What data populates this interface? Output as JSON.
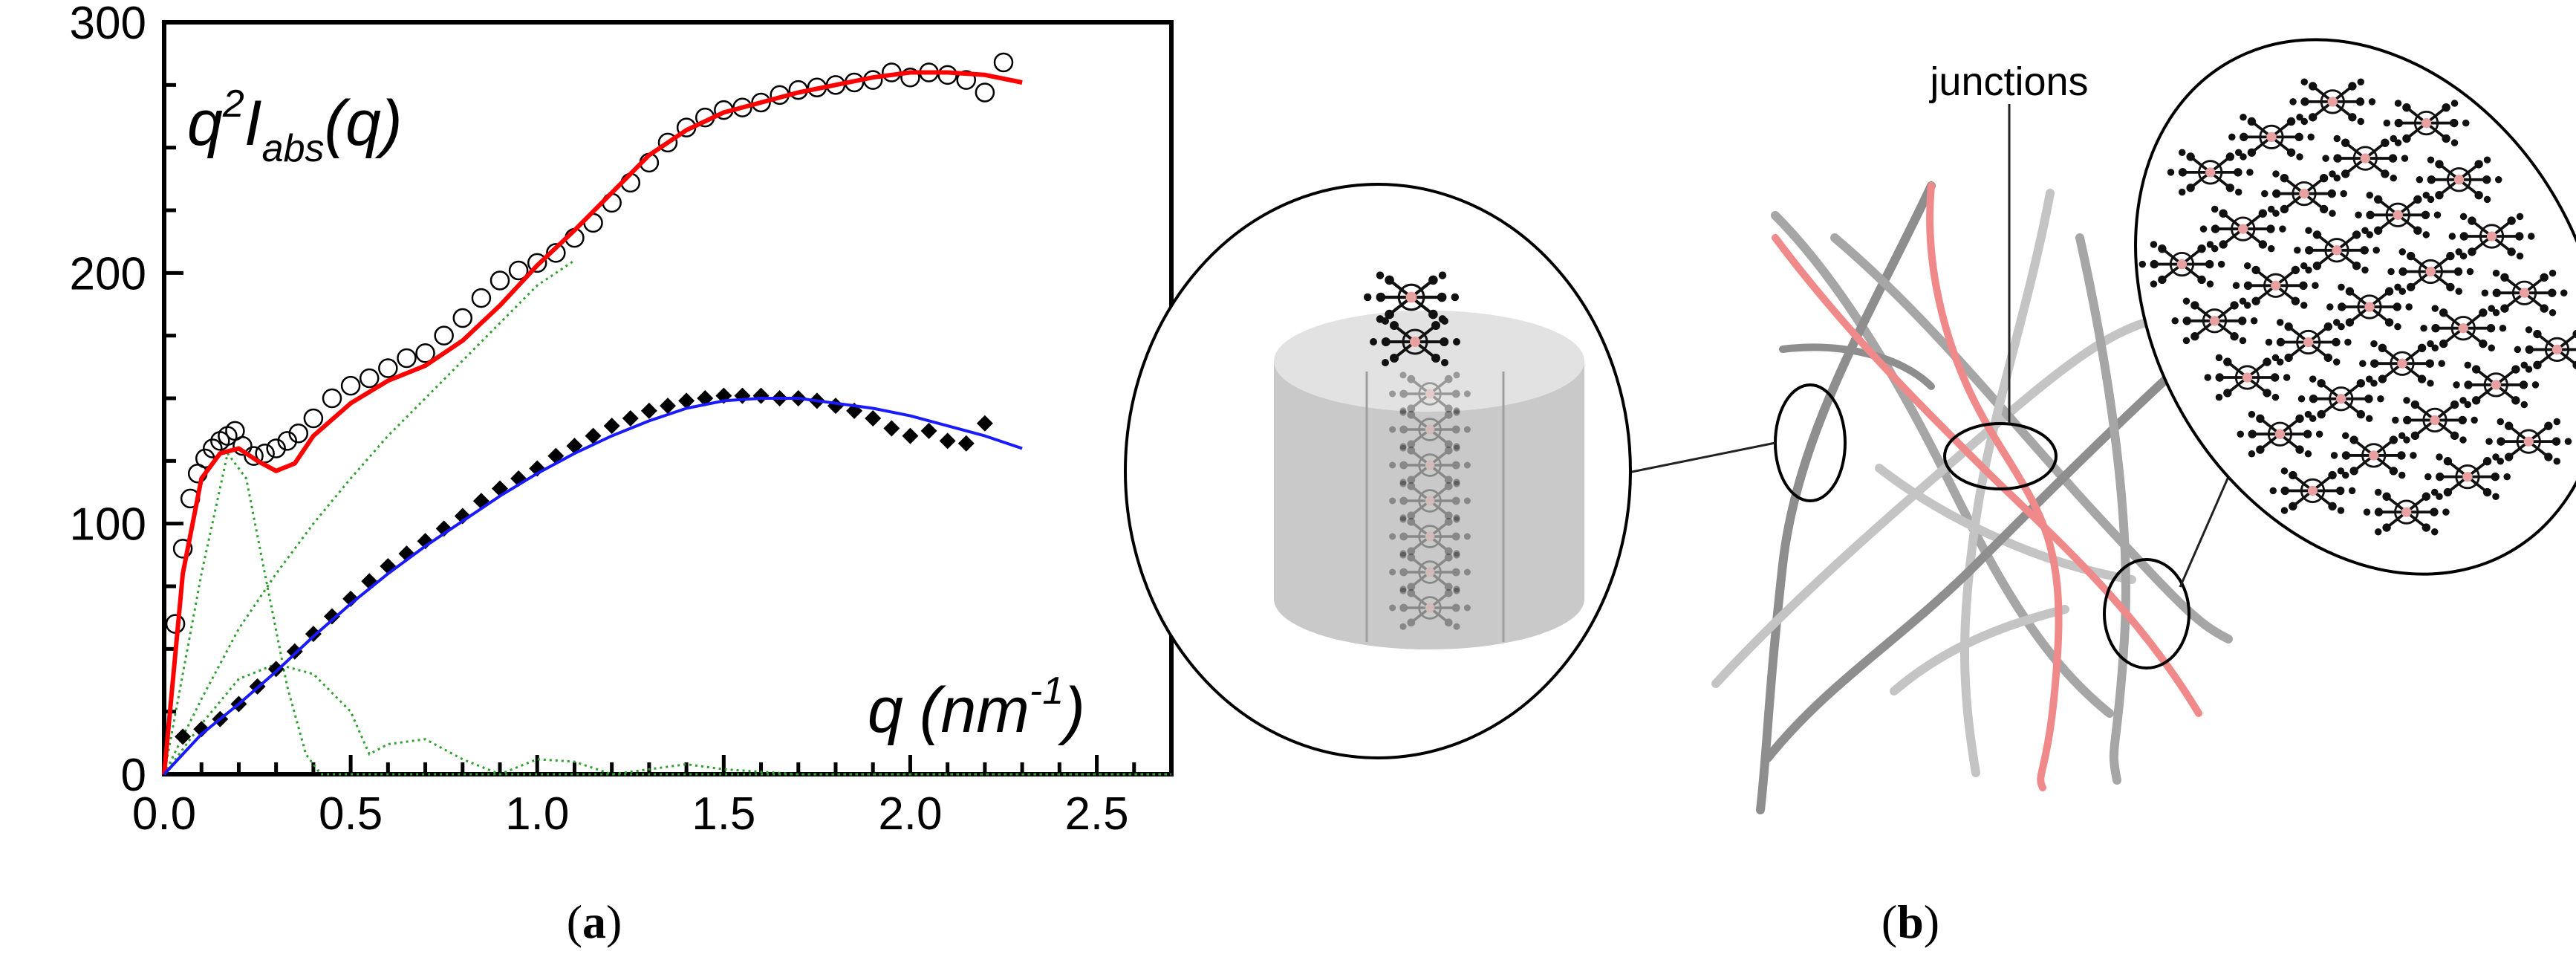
{
  "panel_a": {
    "label_open": "(",
    "label_letter": "a",
    "label_close": ")",
    "annotation_y_q": "q",
    "annotation_y_sup": "2",
    "annotation_y_I": "I",
    "annotation_y_sub": "abs",
    "annotation_y_arg": "(q)",
    "annotation_x_q": "q",
    "annotation_x_open": "(nm",
    "annotation_x_sup": "-1",
    "annotation_x_close": ")"
  },
  "panel_b": {
    "label_open": "(",
    "label_letter": "b",
    "label_close": ")",
    "junctions_label": "junctions"
  },
  "colors": {
    "open_circle": "#000000",
    "filled_diamond": "#000000",
    "red_fit": "#ff0000",
    "blue_fit": "#1a1aff",
    "green_component": "#2ca02c",
    "gray_fiber": "#9a9a9a",
    "light_fiber": "#c4c4c4",
    "pink_fiber": "#f08a8a"
  },
  "chart_data": {
    "type": "scatter",
    "title": "",
    "xlabel": "",
    "ylabel": "",
    "xlim": [
      0.0,
      2.7
    ],
    "ylim": [
      0,
      300
    ],
    "xticks": [
      "0.0",
      "0.5",
      "1.0",
      "1.5",
      "2.0",
      "2.5"
    ],
    "yticks": [
      "0",
      "100",
      "200",
      "300"
    ],
    "grid": false,
    "series": [
      {
        "kind": "open-circles",
        "x": [
          0.03,
          0.05,
          0.07,
          0.09,
          0.11,
          0.13,
          0.15,
          0.17,
          0.19,
          0.21,
          0.24,
          0.27,
          0.3,
          0.33,
          0.36,
          0.4,
          0.45,
          0.5,
          0.55,
          0.6,
          0.65,
          0.7,
          0.75,
          0.8,
          0.85,
          0.9,
          0.95,
          1.0,
          1.05,
          1.1,
          1.15,
          1.2,
          1.25,
          1.3,
          1.35,
          1.4,
          1.45,
          1.5,
          1.55,
          1.6,
          1.65,
          1.7,
          1.75,
          1.8,
          1.85,
          1.9,
          1.95,
          2.0,
          2.05,
          2.1,
          2.15,
          2.2,
          2.25
        ],
        "y": [
          60,
          90,
          110,
          120,
          126,
          130,
          133,
          135,
          137,
          131,
          127,
          128,
          130,
          133,
          136,
          142,
          150,
          155,
          158,
          162,
          166,
          168,
          175,
          182,
          190,
          197,
          201,
          204,
          208,
          214,
          220,
          228,
          236,
          244,
          252,
          258,
          262,
          265,
          266,
          268,
          271,
          273,
          274,
          275,
          276,
          277,
          280,
          278,
          280,
          279,
          277,
          272,
          284
        ]
      },
      {
        "kind": "filled-diamonds",
        "x": [
          0.05,
          0.1,
          0.15,
          0.2,
          0.25,
          0.3,
          0.35,
          0.4,
          0.45,
          0.5,
          0.55,
          0.6,
          0.65,
          0.7,
          0.75,
          0.8,
          0.85,
          0.9,
          0.95,
          1.0,
          1.05,
          1.1,
          1.15,
          1.2,
          1.25,
          1.3,
          1.35,
          1.4,
          1.45,
          1.5,
          1.55,
          1.6,
          1.65,
          1.7,
          1.75,
          1.8,
          1.85,
          1.9,
          1.95,
          2.0,
          2.05,
          2.1,
          2.15,
          2.2
        ],
        "y": [
          15,
          18,
          22,
          28,
          35,
          42,
          49,
          56,
          63,
          70,
          77,
          83,
          88,
          93,
          98,
          103,
          109,
          114,
          118,
          122,
          127,
          131,
          135,
          139,
          142,
          145,
          147,
          149,
          150,
          151,
          151,
          151,
          150,
          150,
          149,
          147,
          145,
          142,
          138,
          135,
          137,
          133,
          132,
          140
        ]
      },
      {
        "kind": "red-fit-line",
        "x": [
          0.0,
          0.05,
          0.1,
          0.15,
          0.2,
          0.25,
          0.3,
          0.35,
          0.4,
          0.5,
          0.6,
          0.7,
          0.8,
          0.9,
          1.0,
          1.1,
          1.2,
          1.3,
          1.4,
          1.5,
          1.6,
          1.7,
          1.8,
          1.9,
          2.0,
          2.1,
          2.2,
          2.3
        ],
        "y": [
          0,
          80,
          118,
          128,
          130,
          125,
          121,
          124,
          135,
          148,
          157,
          163,
          173,
          187,
          203,
          217,
          232,
          247,
          257,
          264,
          268,
          272,
          275,
          278,
          280,
          280,
          279,
          276
        ]
      },
      {
        "kind": "blue-fit-line",
        "x": [
          0.0,
          0.1,
          0.2,
          0.3,
          0.4,
          0.5,
          0.6,
          0.7,
          0.8,
          0.9,
          1.0,
          1.1,
          1.2,
          1.3,
          1.4,
          1.5,
          1.6,
          1.7,
          1.8,
          1.9,
          2.0,
          2.1,
          2.2,
          2.3
        ],
        "y": [
          0,
          16,
          28,
          41,
          55,
          68,
          80,
          91,
          101,
          111,
          120,
          128,
          135,
          141,
          146,
          149,
          150,
          150,
          148,
          146,
          143,
          139,
          135,
          130
        ]
      },
      {
        "kind": "green-dotted-component-1",
        "x": [
          0.0,
          0.1,
          0.17,
          0.22,
          0.27,
          0.33,
          0.38,
          0.42,
          0.5,
          0.6,
          0.7,
          0.8,
          1.0,
          1.5,
          2.0,
          2.7
        ],
        "y": [
          0,
          80,
          128,
          118,
          80,
          35,
          8,
          0,
          0,
          0,
          0,
          0,
          0,
          0,
          0,
          0
        ]
      },
      {
        "kind": "green-dotted-component-2",
        "x": [
          0.0,
          0.1,
          0.2,
          0.3,
          0.4,
          0.5,
          0.6,
          0.7,
          0.8,
          0.9,
          1.0,
          1.1
        ],
        "y": [
          0,
          30,
          58,
          80,
          100,
          118,
          135,
          150,
          165,
          180,
          195,
          205
        ]
      },
      {
        "kind": "green-dotted-component-3",
        "x": [
          0.0,
          0.1,
          0.2,
          0.3,
          0.4,
          0.5,
          0.55,
          0.6,
          0.7,
          0.8,
          0.9,
          1.0,
          1.1,
          1.2,
          1.3,
          1.4,
          1.5,
          1.7,
          2.0,
          2.7
        ],
        "y": [
          0,
          20,
          38,
          44,
          40,
          25,
          8,
          12,
          14,
          6,
          0,
          6,
          5,
          0,
          2,
          4,
          2,
          0,
          0,
          0
        ]
      }
    ]
  }
}
